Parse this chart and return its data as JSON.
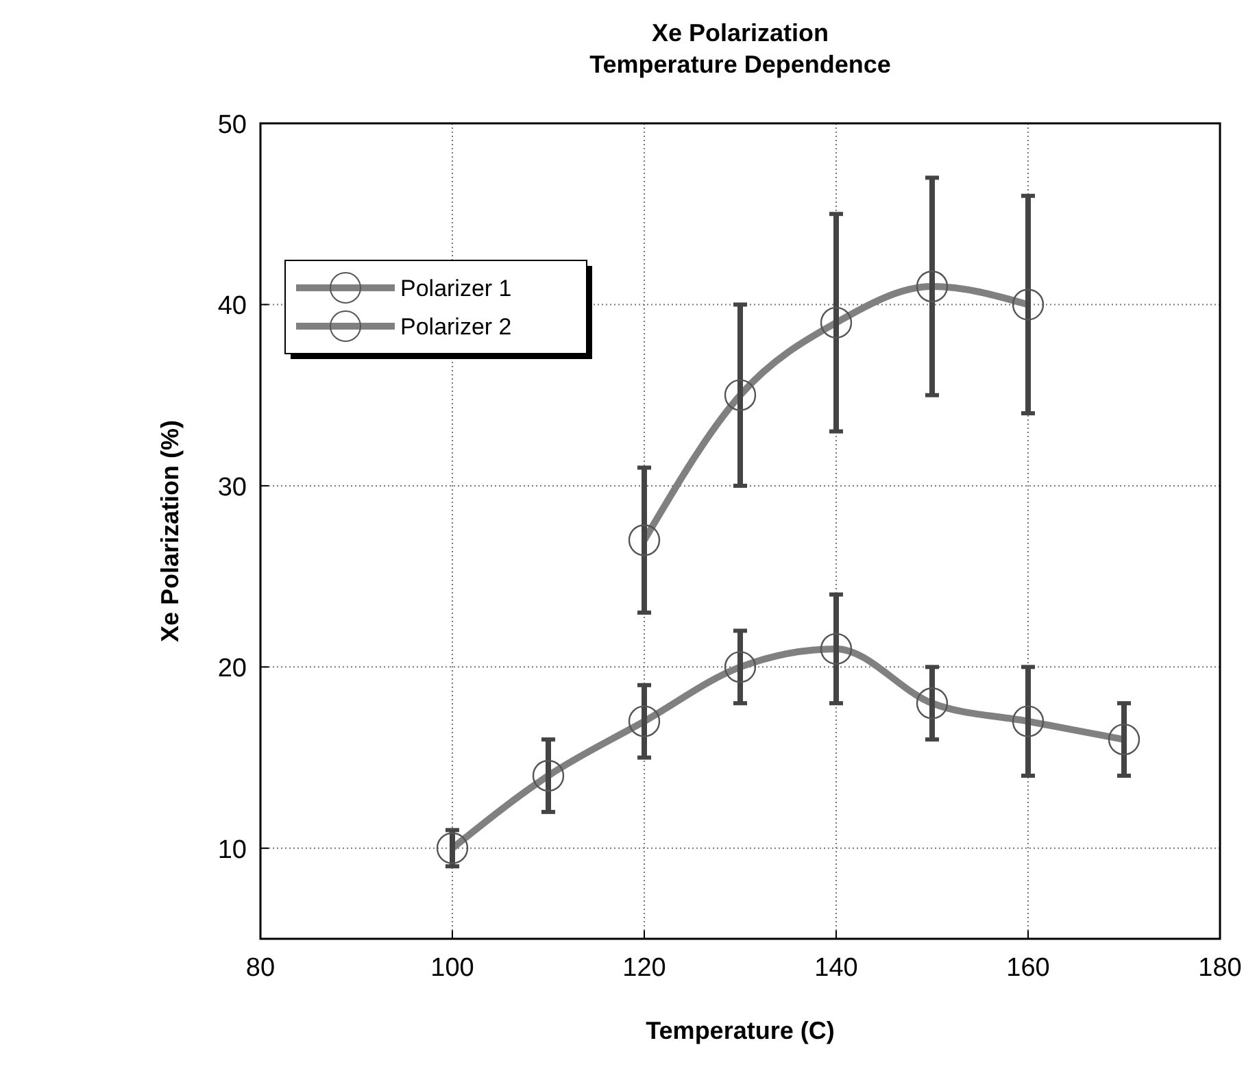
{
  "chart_data": {
    "type": "line",
    "title": "Xe Polarization",
    "subtitle": "Temperature Dependence",
    "xlabel": "Temperature (C)",
    "ylabel": "Xe Polarization (%)",
    "xlim": [
      80,
      180
    ],
    "xticks": [
      80,
      100,
      120,
      140,
      160,
      180
    ],
    "ylim": [
      5,
      50
    ],
    "yticks": [
      10,
      20,
      30,
      40,
      50
    ],
    "grid": true,
    "legend": "top left",
    "marker": "circle",
    "line_style": "solid",
    "series": [
      {
        "name": "Polarizer 1",
        "color": "#808080",
        "x": [
          100,
          110,
          120,
          130,
          140,
          150,
          160,
          170
        ],
        "values": [
          10,
          14,
          17,
          20,
          21,
          18,
          17,
          16
        ],
        "errors": [
          1,
          2,
          2,
          2,
          3,
          2,
          3,
          2
        ]
      },
      {
        "name": "Polarizer 2",
        "color": "#808080",
        "x": [
          120,
          130,
          140,
          150,
          160
        ],
        "values": [
          27,
          35,
          39,
          41,
          40
        ],
        "errors": [
          4,
          5,
          6,
          6,
          6
        ]
      }
    ]
  }
}
